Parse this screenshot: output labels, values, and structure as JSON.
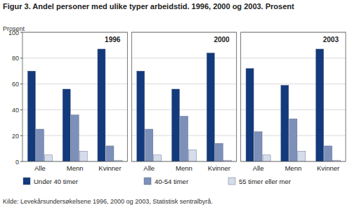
{
  "chart_data": {
    "type": "bar",
    "title": "Figur 3. Andel personer med ulike typer arbeidstid. 1996, 2000 og 2003. Prosent",
    "y_label": "Prosent",
    "note": "Kilde: Levekårsundersøkelsene 1996, 2000 og 2003, Statistisk sentralbyrå.",
    "annotations": [
      "1996",
      "2000",
      "2003"
    ],
    "categories": [
      "Alle",
      "Menn",
      "Kvinner",
      "Alle",
      "Menn",
      "Kvinner",
      "Alle",
      "Menn",
      "Kvinner"
    ],
    "series": [
      {
        "name": "Under 40 timer",
        "color": "#123a7c",
        "values": [
          70,
          56,
          87,
          70,
          56,
          84,
          72,
          59,
          87
        ]
      },
      {
        "name": "40-54 timer",
        "color": "#7d90b9",
        "values": [
          25,
          36,
          12,
          25,
          35,
          14,
          23,
          33,
          12
        ]
      },
      {
        "name": "55 timer eller mer",
        "color": "#d5dcea",
        "values": [
          5,
          8,
          1,
          5,
          9,
          1,
          5,
          8,
          1
        ]
      }
    ],
    "ylim": [
      0,
      100
    ],
    "yticks": [
      0,
      20,
      40,
      60,
      80,
      100
    ],
    "grid": true,
    "legend": "bottom"
  }
}
